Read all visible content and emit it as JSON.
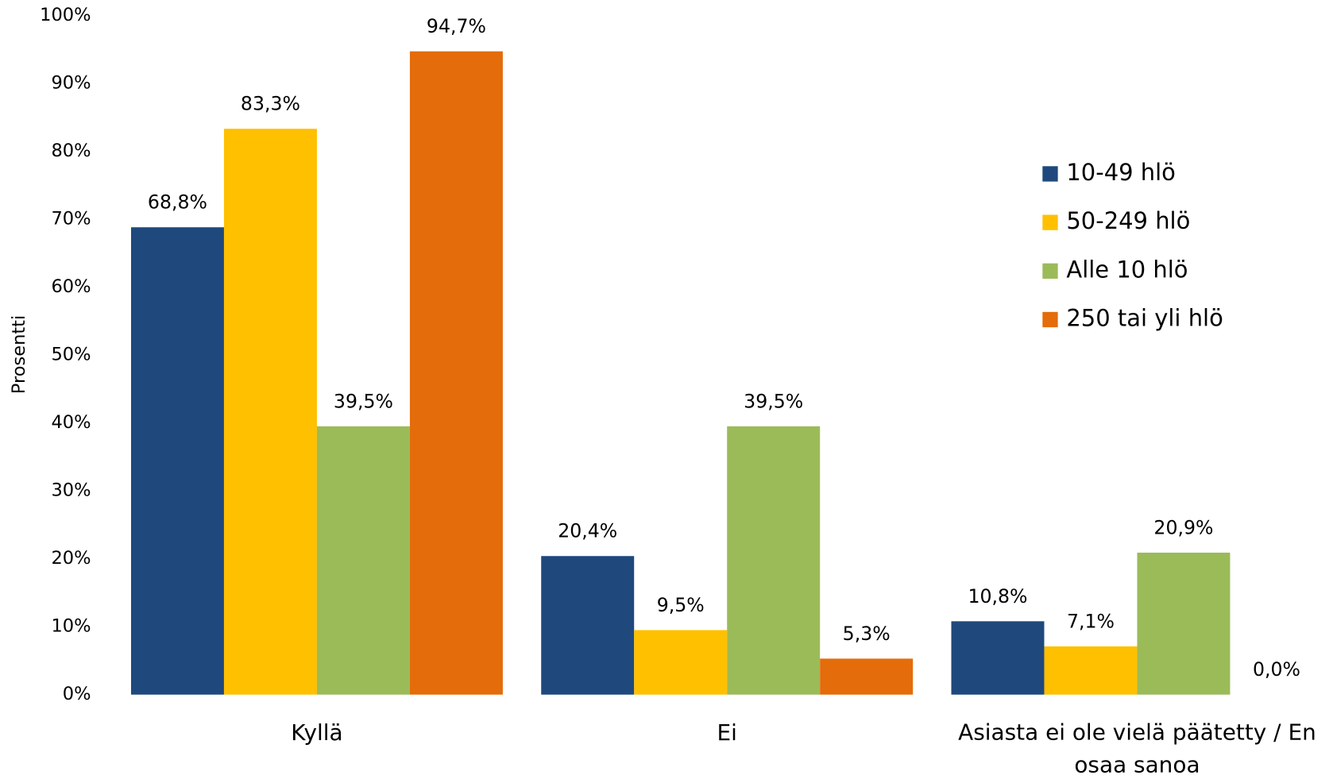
{
  "chart_data": {
    "type": "bar",
    "y_label": "Prosentti",
    "categories": [
      "Kyllä",
      "Ei",
      "Asiasta ei ole vielä päätetty / En osaa sanoa"
    ],
    "series": [
      {
        "name": "10-49 hlö",
        "color": "#1f497d",
        "values": [
          68.8,
          20.4,
          10.8
        ],
        "value_labels": [
          "68,8%",
          "20,4%",
          "10,8%"
        ]
      },
      {
        "name": "50-249 hlö",
        "color": "#ffc000",
        "values": [
          83.3,
          9.5,
          7.1
        ],
        "value_labels": [
          "83,3%",
          "9,5%",
          "7,1%"
        ]
      },
      {
        "name": "Alle 10 hlö",
        "color": "#9bbb59",
        "values": [
          39.5,
          39.5,
          20.9
        ],
        "value_labels": [
          "39,5%",
          "39,5%",
          "20,9%"
        ]
      },
      {
        "name": "250 tai yli hlö",
        "color": "#e46c0a",
        "values": [
          94.7,
          5.3,
          0.0
        ],
        "value_labels": [
          "94,7%",
          "5,3%",
          "0,0%"
        ]
      }
    ],
    "ylim": [
      0,
      100
    ],
    "yticks": [
      {
        "value": 0,
        "label": "0%"
      },
      {
        "value": 10,
        "label": "10%"
      },
      {
        "value": 20,
        "label": "20%"
      },
      {
        "value": 30,
        "label": "30%"
      },
      {
        "value": 40,
        "label": "40%"
      },
      {
        "value": 50,
        "label": "50%"
      },
      {
        "value": 60,
        "label": "60%"
      },
      {
        "value": 70,
        "label": "70%"
      },
      {
        "value": 80,
        "label": "80%"
      },
      {
        "value": 90,
        "label": "90%"
      },
      {
        "value": 100,
        "label": "100%"
      }
    ],
    "grid": false,
    "legend": "right"
  }
}
